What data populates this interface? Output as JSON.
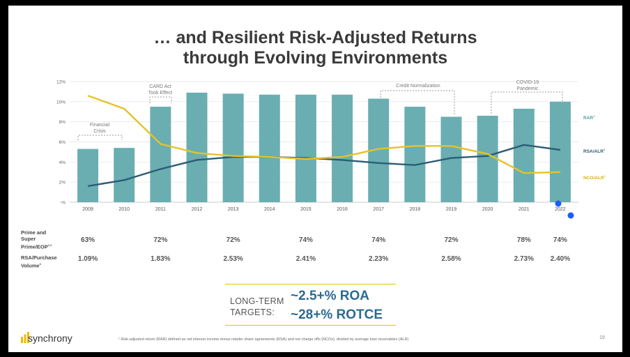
{
  "title": {
    "line1": "… and Resilient Risk-Adjusted Returns",
    "line2": "through Evolving Environments"
  },
  "chart_data": {
    "type": "bar",
    "categories": [
      "2009",
      "2010",
      "2011",
      "2012",
      "2013",
      "2014",
      "2015",
      "2016",
      "2017",
      "2018",
      "2019",
      "2020",
      "2021",
      "2022"
    ],
    "y_ticks": [
      "-%",
      "2%",
      "4%",
      "6%",
      "8%",
      "10%",
      "12%"
    ],
    "ylim": [
      0,
      12
    ],
    "series": [
      {
        "name": "RAR",
        "label": "RAR",
        "kind": "bar",
        "color": "#6aaeb2",
        "values": [
          5.3,
          5.4,
          9.5,
          10.9,
          10.8,
          10.7,
          10.7,
          10.7,
          10.3,
          9.5,
          8.5,
          8.6,
          9.3,
          10.0
        ]
      },
      {
        "name": "RSA/ALR",
        "label": "RSA/ALR",
        "kind": "line",
        "color": "#2c5d75",
        "values": [
          1.6,
          2.2,
          3.3,
          4.2,
          4.5,
          4.5,
          4.4,
          4.2,
          3.9,
          3.7,
          4.4,
          4.6,
          5.7,
          5.2
        ]
      },
      {
        "name": "NCO/ALR",
        "label": "NCO/ALR",
        "kind": "line",
        "color": "#e6c229",
        "values": [
          10.6,
          9.3,
          5.8,
          4.9,
          4.6,
          4.5,
          4.3,
          4.5,
          5.3,
          5.6,
          5.6,
          4.8,
          2.9,
          3.0
        ]
      }
    ],
    "annotations": [
      "Financial Crisis",
      "CARD Act Took Effect",
      "Credit Normalization",
      "COVID-19 Pandemic"
    ]
  },
  "annotation_lines": {
    "financial_1": "Financial",
    "financial_2": "Crisis",
    "card_1": "CARD Act",
    "card_2": "Took Effect",
    "credit": "Credit Normalization",
    "covid_1": "COVID-19",
    "covid_2": "Pandemic"
  },
  "legend_sup": {
    "rar": "1",
    "rsa": "1",
    "nco": "1"
  },
  "table": {
    "row1_label": [
      "Prime and",
      "Super",
      "Prime/EOP"
    ],
    "row1_label_sup": "1,2",
    "row2_label": [
      "RSA/Purchase",
      "Volume"
    ],
    "row2_label_sup": "3",
    "row1": [
      {
        "year": "2009",
        "value": "63%"
      },
      {
        "year": "2011",
        "value": "72%"
      },
      {
        "year": "2013",
        "value": "72%"
      },
      {
        "year": "2015",
        "value": "74%"
      },
      {
        "year": "2017",
        "value": "74%"
      },
      {
        "year": "2019",
        "value": "72%"
      },
      {
        "year": "2021",
        "value": "78%"
      },
      {
        "year": "2022",
        "value": "74%"
      }
    ],
    "row2": [
      {
        "year": "2009",
        "value": "1.09%"
      },
      {
        "year": "2011",
        "value": "1.83%"
      },
      {
        "year": "2013",
        "value": "2.53%"
      },
      {
        "year": "2015",
        "value": "2.41%"
      },
      {
        "year": "2017",
        "value": "2.23%"
      },
      {
        "year": "2019",
        "value": "2.58%"
      },
      {
        "year": "2021",
        "value": "2.73%"
      },
      {
        "year": "2022",
        "value": "2.40%"
      }
    ]
  },
  "targets": {
    "label_1": "LONG-TERM",
    "label_2": "TARGETS:",
    "value_1": "~2.5+% ROA",
    "value_2": "~28+% ROTCE"
  },
  "brand": {
    "name": "synchrony"
  },
  "footnote": "¹ Risk-adjusted return (RAR) defined as net interest income minus retailer share agreements (RSA) and net charge offs (NCOs), divided by average loan receivables (ALR)",
  "page_number": "19",
  "colors": {
    "accent_yellow": "#e2c400",
    "logo_yellow": "#f2b800",
    "target_blue": "#2a6b8f",
    "handle_blue": "#1a5cff"
  }
}
